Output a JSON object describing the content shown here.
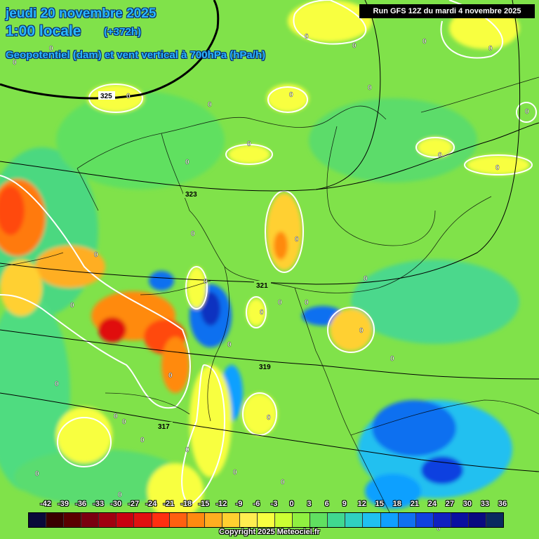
{
  "header": {
    "date_line": "jeudi 20 novembre 2025",
    "time_line": "1:00 locale",
    "offset": "(+372h)",
    "parameter": "Geopotentiel (dam) et vent vertical à 700hPa (hPa/h)",
    "run": "Run GFS 12Z du mardi 4 novembre 2025"
  },
  "legend": {
    "ticks": [
      "-42",
      "-39",
      "-36",
      "-33",
      "-30",
      "-27",
      "-24",
      "-21",
      "-18",
      "-15",
      "-12",
      "-9",
      "-6",
      "-3",
      "0",
      "3",
      "6",
      "9",
      "12",
      "15",
      "18",
      "21",
      "24",
      "27",
      "30",
      "33",
      "36"
    ],
    "colors": [
      "#0a0a3a",
      "#3a0000",
      "#5a0000",
      "#7a0010",
      "#a00010",
      "#c80010",
      "#e01010",
      "#ff3010",
      "#ff6010",
      "#ff8a10",
      "#ffae20",
      "#ffd030",
      "#ffee50",
      "#f8ff40",
      "#ccff33",
      "#90f040",
      "#60e060",
      "#40d890",
      "#30d0c0",
      "#20c0f0",
      "#10a0ff",
      "#1070f0",
      "#1040e0",
      "#1020c0",
      "#0a10a0",
      "#0a0a80",
      "#0a2a60"
    ]
  },
  "map": {
    "contour_labels": [
      {
        "text": "325"
      },
      {
        "text": "323"
      },
      {
        "text": "321"
      },
      {
        "text": "319"
      },
      {
        "text": "317"
      }
    ],
    "zero_labels_count": 40
  },
  "footer": {
    "copyright": "Copyright 2025 Meteociel.fr"
  }
}
